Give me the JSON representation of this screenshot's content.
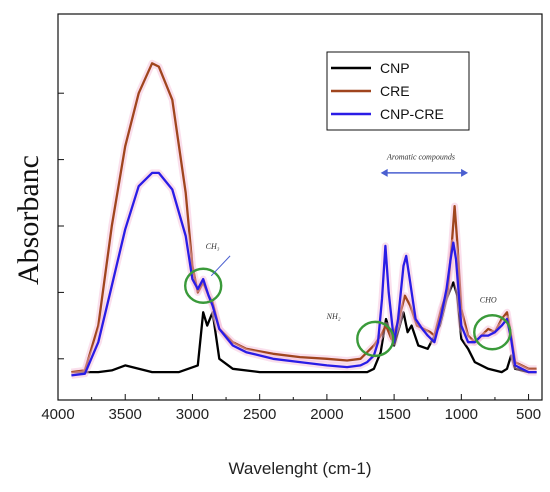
{
  "chart_data": {
    "type": "line",
    "xlabel": "Wavelenght (cm-1)",
    "ylabel": "Absorbanc",
    "xlim": [
      4000,
      400
    ],
    "x_ticks": [
      4000,
      3500,
      3000,
      2500,
      2000,
      1500,
      1000,
      500
    ],
    "x_tick_labels": [
      "4000",
      "3500",
      "3000",
      "2500",
      "2000",
      "1500",
      "1000",
      "500"
    ],
    "ylim": [
      0,
      1
    ],
    "grid": false,
    "legend_position": "top-right",
    "series": [
      {
        "name": "CNP",
        "color": "#000000",
        "points": [
          [
            3900,
            0.06
          ],
          [
            3700,
            0.06
          ],
          [
            3600,
            0.065
          ],
          [
            3500,
            0.08
          ],
          [
            3400,
            0.07
          ],
          [
            3300,
            0.06
          ],
          [
            3100,
            0.06
          ],
          [
            2960,
            0.08
          ],
          [
            2920,
            0.24
          ],
          [
            2890,
            0.2
          ],
          [
            2850,
            0.24
          ],
          [
            2800,
            0.1
          ],
          [
            2700,
            0.07
          ],
          [
            2500,
            0.06
          ],
          [
            2100,
            0.06
          ],
          [
            1800,
            0.06
          ],
          [
            1700,
            0.06
          ],
          [
            1650,
            0.07
          ],
          [
            1600,
            0.12
          ],
          [
            1560,
            0.22
          ],
          [
            1500,
            0.14
          ],
          [
            1430,
            0.24
          ],
          [
            1400,
            0.18
          ],
          [
            1370,
            0.2
          ],
          [
            1320,
            0.14
          ],
          [
            1250,
            0.13
          ],
          [
            1160,
            0.2
          ],
          [
            1110,
            0.28
          ],
          [
            1060,
            0.33
          ],
          [
            1030,
            0.29
          ],
          [
            1000,
            0.16
          ],
          [
            950,
            0.13
          ],
          [
            900,
            0.09
          ],
          [
            800,
            0.07
          ],
          [
            700,
            0.06
          ],
          [
            660,
            0.07
          ],
          [
            630,
            0.11
          ],
          [
            600,
            0.07
          ],
          [
            500,
            0.06
          ],
          [
            440,
            0.06
          ]
        ]
      },
      {
        "name": "CRE",
        "color": "#a0451e",
        "points": [
          [
            3900,
            0.06
          ],
          [
            3800,
            0.065
          ],
          [
            3700,
            0.2
          ],
          [
            3600,
            0.5
          ],
          [
            3500,
            0.74
          ],
          [
            3400,
            0.9
          ],
          [
            3300,
            0.99
          ],
          [
            3250,
            0.98
          ],
          [
            3150,
            0.88
          ],
          [
            3050,
            0.6
          ],
          [
            3000,
            0.38
          ],
          [
            2960,
            0.3
          ],
          [
            2920,
            0.33
          ],
          [
            2880,
            0.29
          ],
          [
            2850,
            0.27
          ],
          [
            2800,
            0.19
          ],
          [
            2700,
            0.15
          ],
          [
            2600,
            0.13
          ],
          [
            2400,
            0.115
          ],
          [
            2200,
            0.105
          ],
          [
            2000,
            0.1
          ],
          [
            1850,
            0.095
          ],
          [
            1750,
            0.1
          ],
          [
            1700,
            0.12
          ],
          [
            1650,
            0.14
          ],
          [
            1600,
            0.17
          ],
          [
            1560,
            0.2
          ],
          [
            1520,
            0.16
          ],
          [
            1470,
            0.21
          ],
          [
            1420,
            0.29
          ],
          [
            1380,
            0.26
          ],
          [
            1330,
            0.2
          ],
          [
            1280,
            0.19
          ],
          [
            1230,
            0.18
          ],
          [
            1200,
            0.17
          ],
          [
            1150,
            0.25
          ],
          [
            1100,
            0.31
          ],
          [
            1070,
            0.45
          ],
          [
            1050,
            0.56
          ],
          [
            1030,
            0.45
          ],
          [
            1000,
            0.25
          ],
          [
            950,
            0.17
          ],
          [
            900,
            0.15
          ],
          [
            850,
            0.17
          ],
          [
            800,
            0.19
          ],
          [
            750,
            0.18
          ],
          [
            700,
            0.22
          ],
          [
            660,
            0.24
          ],
          [
            630,
            0.17
          ],
          [
            600,
            0.09
          ],
          [
            500,
            0.07
          ],
          [
            440,
            0.07
          ]
        ]
      },
      {
        "name": "CNP-CRE",
        "color": "#2a1ce6",
        "points": [
          [
            3900,
            0.05
          ],
          [
            3800,
            0.055
          ],
          [
            3700,
            0.15
          ],
          [
            3600,
            0.32
          ],
          [
            3500,
            0.49
          ],
          [
            3400,
            0.62
          ],
          [
            3300,
            0.66
          ],
          [
            3250,
            0.66
          ],
          [
            3150,
            0.61
          ],
          [
            3050,
            0.47
          ],
          [
            3000,
            0.34
          ],
          [
            2960,
            0.31
          ],
          [
            2920,
            0.34
          ],
          [
            2880,
            0.29
          ],
          [
            2850,
            0.26
          ],
          [
            2800,
            0.19
          ],
          [
            2700,
            0.14
          ],
          [
            2600,
            0.12
          ],
          [
            2400,
            0.1
          ],
          [
            2200,
            0.09
          ],
          [
            2000,
            0.08
          ],
          [
            1850,
            0.075
          ],
          [
            1750,
            0.08
          ],
          [
            1700,
            0.09
          ],
          [
            1650,
            0.11
          ],
          [
            1620,
            0.15
          ],
          [
            1590,
            0.28
          ],
          [
            1565,
            0.44
          ],
          [
            1540,
            0.3
          ],
          [
            1500,
            0.15
          ],
          [
            1470,
            0.22
          ],
          [
            1430,
            0.38
          ],
          [
            1410,
            0.41
          ],
          [
            1380,
            0.33
          ],
          [
            1340,
            0.22
          ],
          [
            1290,
            0.19
          ],
          [
            1250,
            0.17
          ],
          [
            1200,
            0.15
          ],
          [
            1150,
            0.23
          ],
          [
            1110,
            0.31
          ],
          [
            1080,
            0.4
          ],
          [
            1060,
            0.45
          ],
          [
            1040,
            0.4
          ],
          [
            1000,
            0.2
          ],
          [
            950,
            0.15
          ],
          [
            900,
            0.15
          ],
          [
            850,
            0.17
          ],
          [
            800,
            0.17
          ],
          [
            750,
            0.18
          ],
          [
            700,
            0.2
          ],
          [
            660,
            0.22
          ],
          [
            630,
            0.16
          ],
          [
            600,
            0.08
          ],
          [
            500,
            0.06
          ],
          [
            440,
            0.06
          ]
        ]
      }
    ],
    "annotations": [
      {
        "text": "CH₃",
        "x": 2850,
        "y": 0.43
      },
      {
        "text": "NH₂",
        "x": 1950,
        "y": 0.22
      },
      {
        "text": "Aromatic compounds",
        "x": 1300,
        "y": 0.7
      },
      {
        "text": "CHO",
        "x": 800,
        "y": 0.27
      }
    ],
    "circles": [
      {
        "x": 2920,
        "y": 0.32
      },
      {
        "x": 1640,
        "y": 0.16
      },
      {
        "x": 770,
        "y": 0.18
      }
    ],
    "aromatic_arrow": {
      "x_start": 1600,
      "x_end": 950,
      "y": 0.66
    }
  }
}
